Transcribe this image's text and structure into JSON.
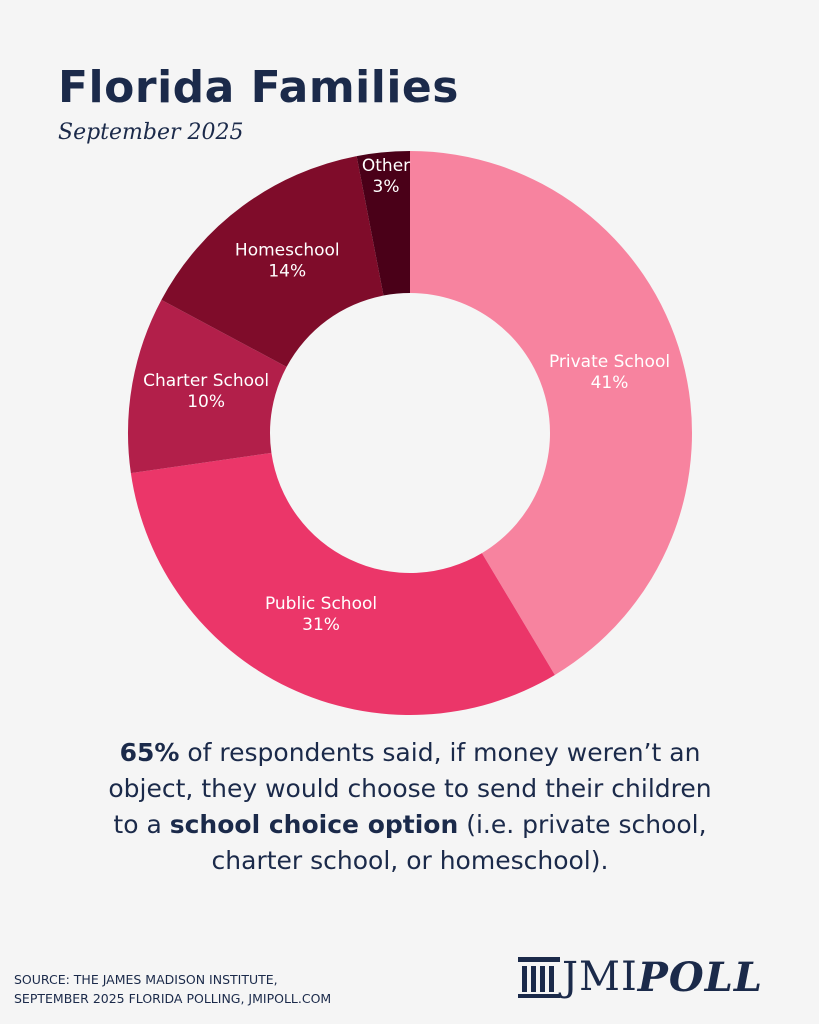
{
  "chart_data": {
    "type": "donut",
    "title": "Florida Families",
    "subtitle": "September 2025",
    "categories": [
      "Private School",
      "Public School",
      "Charter School",
      "Homeschool",
      "Other"
    ],
    "values": [
      41,
      31,
      10,
      14,
      3
    ],
    "value_labels": [
      "41%",
      "31%",
      "10%",
      "14%",
      "3%"
    ],
    "colors": [
      "#f7839f",
      "#eb3669",
      "#b21f4a",
      "#7f0c2a",
      "#4a0018"
    ],
    "annotation": [
      "65%",
      " of respondents said, if money weren’t an object, they would choose to send their children to a ",
      "school choice option",
      " (i.e. private school, charter school, or homeschool)."
    ],
    "annotation_bold": [
      true,
      false,
      true,
      false
    ],
    "source": [
      "SOURCE: THE JAMES MADISON INSTITUTE,",
      "SEPTEMBER 2025 FLORIDA POLLING, JMIPOLL.COM"
    ],
    "logo": [
      "JMI",
      "POLL"
    ]
  }
}
